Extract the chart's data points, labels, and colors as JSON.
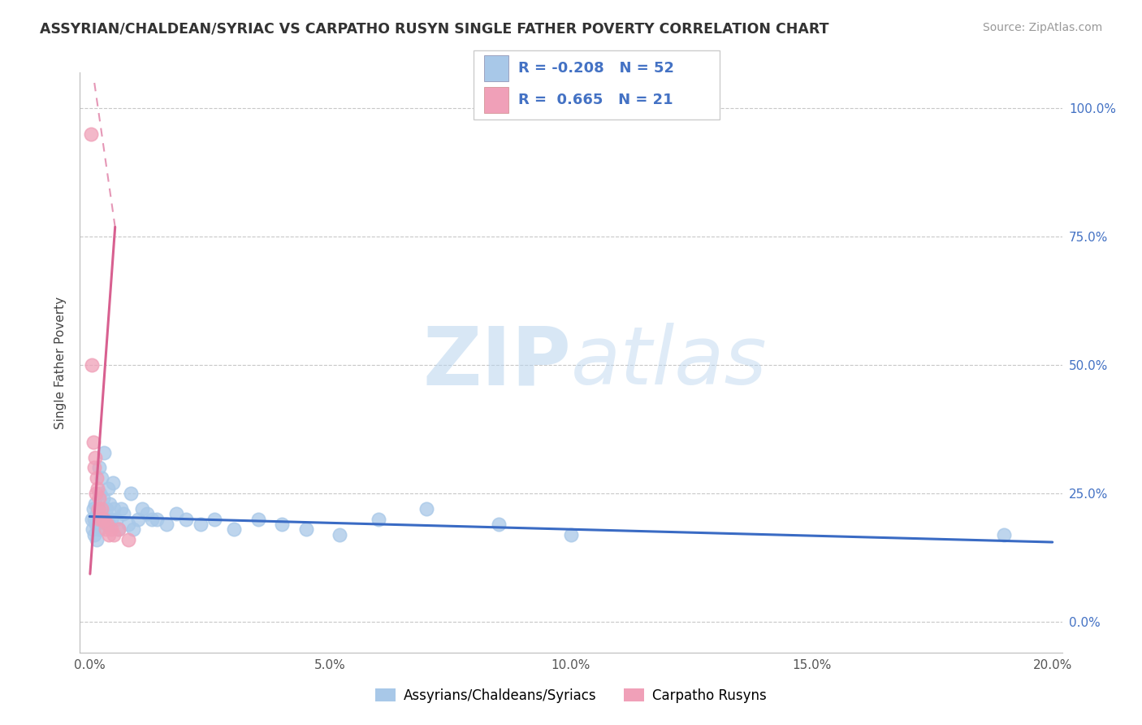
{
  "title": "ASSYRIAN/CHALDEAN/SYRIAC VS CARPATHO RUSYN SINGLE FATHER POVERTY CORRELATION CHART",
  "source": "Source: ZipAtlas.com",
  "ylabel": "Single Father Poverty",
  "blue_color": "#a8c8e8",
  "pink_color": "#f0a0b8",
  "blue_line_color": "#3a6bc4",
  "pink_line_color": "#d86090",
  "text_color": "#4472c4",
  "legend_R1": "-0.208",
  "legend_N1": "52",
  "legend_R2": "0.665",
  "legend_N2": "21",
  "blue_label": "Assyrians/Chaldeans/Syriacs",
  "pink_label": "Carpatho Rusyns",
  "watermark": "ZIPatlas",
  "blue_scatter_x": [
    0.0004,
    0.0006,
    0.0008,
    0.001,
    0.001,
    0.0012,
    0.0013,
    0.0015,
    0.0015,
    0.0018,
    0.002,
    0.002,
    0.0022,
    0.0025,
    0.0025,
    0.0028,
    0.003,
    0.0032,
    0.0035,
    0.0038,
    0.004,
    0.0042,
    0.0045,
    0.0048,
    0.005,
    0.0055,
    0.006,
    0.0065,
    0.007,
    0.008,
    0.0085,
    0.009,
    0.01,
    0.011,
    0.012,
    0.013,
    0.014,
    0.016,
    0.018,
    0.02,
    0.023,
    0.026,
    0.03,
    0.035,
    0.04,
    0.045,
    0.052,
    0.06,
    0.07,
    0.085,
    0.1,
    0.19
  ],
  "blue_scatter_y": [
    0.2,
    0.18,
    0.22,
    0.17,
    0.2,
    0.23,
    0.19,
    0.21,
    0.16,
    0.22,
    0.18,
    0.3,
    0.25,
    0.28,
    0.21,
    0.24,
    0.33,
    0.2,
    0.22,
    0.26,
    0.19,
    0.23,
    0.2,
    0.27,
    0.22,
    0.2,
    0.18,
    0.22,
    0.21,
    0.19,
    0.25,
    0.18,
    0.2,
    0.22,
    0.21,
    0.2,
    0.2,
    0.19,
    0.21,
    0.2,
    0.19,
    0.2,
    0.18,
    0.2,
    0.19,
    0.18,
    0.17,
    0.2,
    0.22,
    0.19,
    0.17,
    0.17
  ],
  "pink_scatter_x": [
    0.0003,
    0.0005,
    0.0008,
    0.001,
    0.0012,
    0.0013,
    0.0015,
    0.0017,
    0.0018,
    0.002,
    0.0022,
    0.0025,
    0.0027,
    0.003,
    0.0033,
    0.0036,
    0.004,
    0.0045,
    0.005,
    0.006,
    0.008
  ],
  "pink_scatter_y": [
    0.95,
    0.5,
    0.35,
    0.3,
    0.32,
    0.25,
    0.28,
    0.26,
    0.22,
    0.24,
    0.2,
    0.22,
    0.2,
    0.2,
    0.18,
    0.19,
    0.17,
    0.18,
    0.17,
    0.18,
    0.16
  ],
  "xlim_max": 0.2,
  "ylim_max": 1.05
}
